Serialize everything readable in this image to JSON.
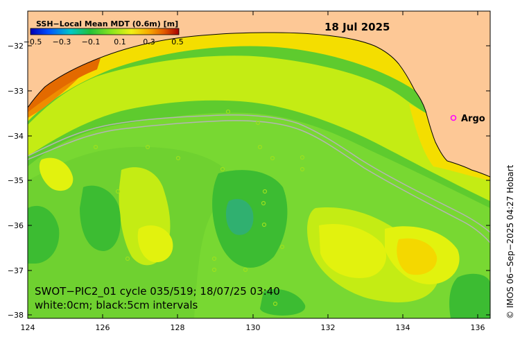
{
  "map": {
    "date": "18 Jul 2025",
    "colorbar": {
      "title": "SSH−Local Mean MDT (0.6m) [m]",
      "ticks": [
        "−0.5",
        "−0.3",
        "−0.1",
        "0.1",
        "0.3",
        "0.5"
      ],
      "colors": [
        "#0000b4",
        "#0050ff",
        "#00c8c8",
        "#22c03a",
        "#8ee61e",
        "#f0f014",
        "#f7a800",
        "#e35a00",
        "#a80000"
      ]
    },
    "axes": {
      "x_ticks": [
        "124",
        "126",
        "128",
        "130",
        "132",
        "134",
        "136"
      ],
      "y_ticks": [
        "−32",
        "−33",
        "−34",
        "−35",
        "−36",
        "−37",
        "−38"
      ],
      "x_range": [
        124,
        136.3
      ],
      "y_range": [
        -38.1,
        -31.3
      ]
    },
    "legend": {
      "argo_label": "Argo",
      "argo_color": "#ff00ff"
    },
    "annotation": {
      "line1": "SWOT−PIC2_01 cycle 035/519; 18/07/25 03:40",
      "line2": "white:0cm; black:5cm intervals"
    },
    "credit": "© IMOS 06−Sep−2025 04:27 Hobart",
    "colors": {
      "land": "#fdc896",
      "ocean_base": "#66cc33",
      "swath_track": "#b4b4b4"
    }
  }
}
